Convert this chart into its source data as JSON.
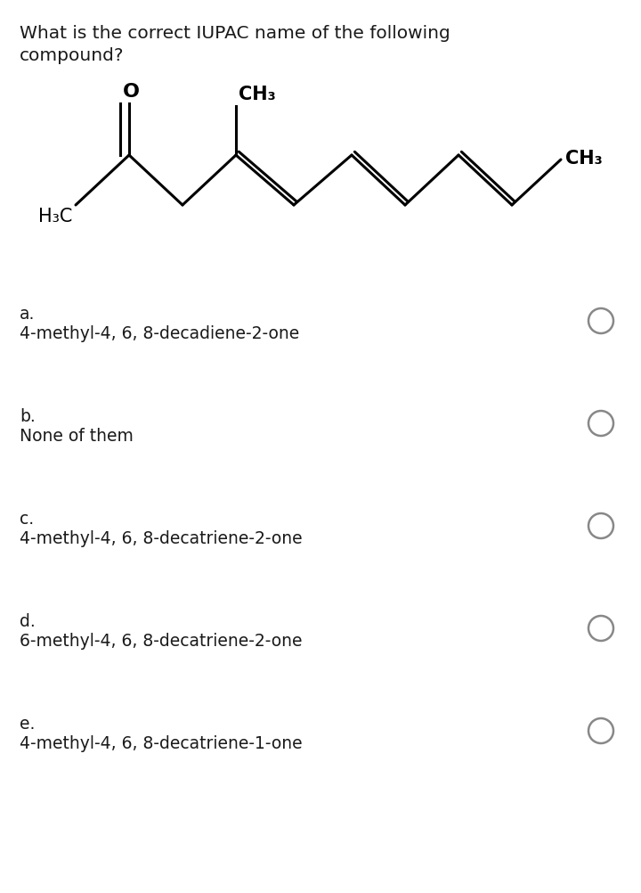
{
  "question_line1": "What is the correct IUPAC name of the following",
  "question_line2": "compound?",
  "question_fontsize": 14.5,
  "options": [
    {
      "label": "a.",
      "text": "4-methyl-4, 6, 8-decadiene-2-one"
    },
    {
      "label": "b.",
      "text": "None of them"
    },
    {
      "label": "c.",
      "text": "4-methyl-4, 6, 8-decatriene-2-one"
    },
    {
      "label": "d.",
      "text": "6-methyl-4, 6, 8-decatriene-2-one"
    },
    {
      "label": "e.",
      "text": "4-methyl-4, 6, 8-decatriene-1-one"
    }
  ],
  "option_label_fontsize": 13.5,
  "option_text_fontsize": 13.5,
  "background_color": "#ffffff",
  "text_color": "#1a1a1a",
  "circle_color": "#888888",
  "bond_color": "#000000",
  "molecule_label_fontsize": 15,
  "h3c_fontsize": 15
}
